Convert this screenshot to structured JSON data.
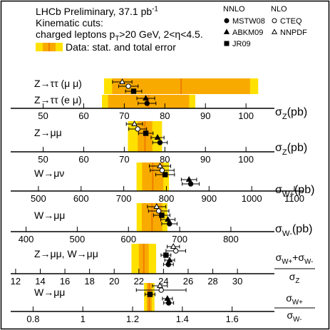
{
  "header": {
    "lines": [
      [
        {
          "text": "LHCb Preliminary, 37.1 pb"
        },
        {
          "text": "-1",
          "shift": "sup"
        }
      ],
      [
        {
          "text": "Kinematic cuts:"
        }
      ],
      [
        {
          "text": "charged leptons p"
        },
        {
          "text": "T",
          "shift": "sub"
        },
        {
          "text": ">20 GeV, 2<η<4.5."
        }
      ]
    ],
    "band_legend": "Data: stat. and total error"
  },
  "band_colors": {
    "total": "#ffe100",
    "stat": "#f9aa00",
    "central": "#ef7d00"
  },
  "legend": {
    "groups": [
      {
        "title": "NNLO",
        "items": [
          {
            "name": "MSTW08",
            "marker": "filled-circle"
          },
          {
            "name": "ABKM09",
            "marker": "filled-triangle"
          },
          {
            "name": "JR09",
            "marker": "filled-square"
          }
        ]
      },
      {
        "title": "NLO",
        "items": [
          {
            "name": "CTEQ",
            "marker": "open-circle"
          },
          {
            "name": "NNPDF",
            "marker": "open-triangle"
          }
        ]
      }
    ]
  },
  "chart_data": [
    {
      "type": "band",
      "xlim": [
        42,
        107
      ],
      "xticks": [
        50,
        60,
        70,
        80,
        90,
        100
      ],
      "xlabel": [
        {
          "text": "σ"
        },
        {
          "text": "Z",
          "shift": "sub"
        },
        {
          "text": "(pb)"
        }
      ],
      "measurements": [
        {
          "label": "Z→ττ (μ μ)",
          "value": 84,
          "stat": 17,
          "total": 19
        },
        {
          "label": "Z→ττ (e μ)",
          "value": 76,
          "stat": 10,
          "total": 11.5
        }
      ],
      "theory": [
        {
          "value": 75.6,
          "error": 2.2
        },
        {
          "value": 75.3,
          "error": 2.2
        },
        {
          "value": 72.3,
          "error": 2.0
        },
        {
          "value": 71,
          "error": 2.4
        },
        {
          "value": 69.5,
          "error": 2.4
        }
      ]
    },
    {
      "type": "band",
      "xlim": [
        42,
        107
      ],
      "xticks": [
        50,
        60,
        70,
        80,
        90,
        100
      ],
      "xlabel": [
        {
          "text": "σ"
        },
        {
          "text": "Z",
          "shift": "sub"
        },
        {
          "text": "(pb)"
        }
      ],
      "measurements": [
        {
          "label": "Z→μμ",
          "value": 75.1,
          "stat": 1.8,
          "total": 4.2
        }
      ],
      "theory": [
        {
          "value": 78.8,
          "error": 1.8
        },
        {
          "value": 78.2,
          "error": 1.6
        },
        {
          "value": 75.3,
          "error": 1.8
        },
        {
          "value": 73.3,
          "error": 2.2
        },
        {
          "value": 72.5,
          "error": 2.0
        }
      ]
    },
    {
      "type": "band",
      "xlim": [
        435,
        1120
      ],
      "xticks": [
        500,
        600,
        700,
        800,
        900,
        1000,
        1100
      ],
      "xlabel": [
        {
          "text": "σ"
        },
        {
          "text": "W+",
          "shift": "sub"
        },
        {
          "text": "(pb)"
        }
      ],
      "measurements": [
        {
          "label": "W→μν",
          "value": 768,
          "stat": 25,
          "total": 38
        }
      ],
      "theory": [
        {
          "value": 857,
          "error": 20
        },
        {
          "value": 853,
          "error": 18
        },
        {
          "value": 797,
          "error": 22
        },
        {
          "value": 790,
          "error": 28
        },
        {
          "value": 785,
          "error": 25
        }
      ]
    },
    {
      "type": "band",
      "xlim": [
        370,
        885
      ],
      "xticks": [
        400,
        500,
        600,
        700,
        800
      ],
      "xlabel": [
        {
          "text": "σ"
        },
        {
          "text": "W-",
          "shift": "sub"
        },
        {
          "text": "(pb)"
        }
      ],
      "measurements": [
        {
          "label": "W→μμ",
          "value": 646,
          "stat": 20,
          "total": 30
        }
      ],
      "theory": [
        {
          "value": 680,
          "error": 15
        },
        {
          "value": 677,
          "error": 14
        },
        {
          "value": 665,
          "error": 16
        },
        {
          "value": 659,
          "error": 20
        },
        {
          "value": 655,
          "error": 18
        }
      ]
    },
    {
      "type": "band",
      "xlim": [
        11.6,
        33
      ],
      "xticks": [
        12,
        14,
        16,
        18,
        20,
        22,
        24,
        26,
        28,
        30
      ],
      "xlabel": {
        "numerator": [
          {
            "text": "σ"
          },
          {
            "text": "W+",
            "shift": "sub"
          },
          {
            "text": "+σ"
          },
          {
            "text": "W-",
            "shift": "sub"
          }
        ],
        "denominator": [
          {
            "text": "σ"
          },
          {
            "text": "Z",
            "shift": "sub"
          }
        ]
      },
      "measurements": [
        {
          "label": "Z→μμ, W→μμ",
          "value": 22.4,
          "stat": 0.4,
          "total": 1.0
        }
      ],
      "theory": [
        {
          "value": 24.4,
          "error": 0.4
        },
        {
          "value": 24.5,
          "error": 0.4
        },
        {
          "value": 24.2,
          "error": 0.4
        },
        {
          "value": 25.0,
          "error": 0.8
        },
        {
          "value": 24.8,
          "error": 0.5
        }
      ]
    },
    {
      "type": "band",
      "xlim": [
        0.71,
        1.77
      ],
      "xticks": [
        0.8,
        1,
        1.2,
        1.4,
        1.6
      ],
      "xlabel": {
        "numerator": [
          {
            "text": "σ"
          },
          {
            "text": "W+",
            "shift": "sub"
          }
        ],
        "denominator": [
          {
            "text": "σ"
          },
          {
            "text": "W-",
            "shift": "sub"
          }
        ]
      },
      "measurements": [
        {
          "label": "W→μμ",
          "value": 1.267,
          "stat": 0.01,
          "total": 0.021
        }
      ],
      "theory": [
        {
          "value": 1.345,
          "error": 0.02
        },
        {
          "value": 1.34,
          "error": 0.02
        },
        {
          "value": 1.27,
          "error": 0.02
        },
        {
          "value": 1.315,
          "error": 0.1
        },
        {
          "value": 1.31,
          "error": 0.03
        }
      ]
    }
  ]
}
